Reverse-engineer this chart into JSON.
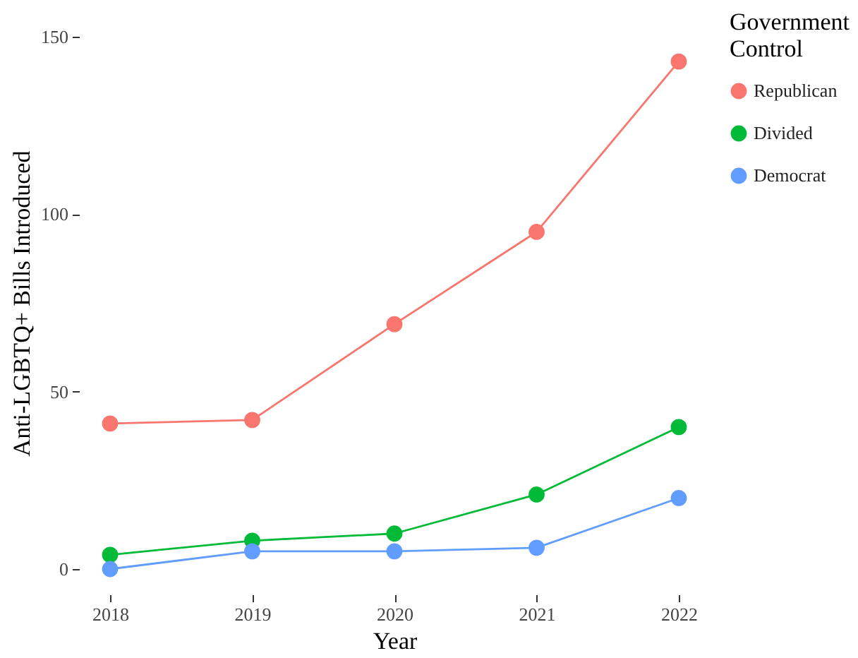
{
  "chart_data": {
    "type": "line",
    "xlabel": "Year",
    "ylabel": "Anti-LGBTQ+ Bills Introduced",
    "legend_title": "Government Control",
    "x": [
      2018,
      2019,
      2020,
      2021,
      2022
    ],
    "series": [
      {
        "name": "Republican",
        "color": "#f8766d",
        "values": [
          41,
          42,
          69,
          95,
          143
        ]
      },
      {
        "name": "Divided",
        "color": "#00ba38",
        "values": [
          4,
          8,
          10,
          21,
          40
        ]
      },
      {
        "name": "Democrat",
        "color": "#619cff",
        "values": [
          0,
          5,
          5,
          6,
          20
        ]
      }
    ],
    "xlim": [
      2018,
      2022
    ],
    "xticks": [
      2018,
      2019,
      2020,
      2021,
      2022
    ],
    "ylim": [
      0,
      150
    ],
    "yticks": [
      0,
      50,
      100,
      150
    ],
    "grid": false,
    "legend": "right",
    "marker": "circle",
    "line_style": "solid"
  }
}
